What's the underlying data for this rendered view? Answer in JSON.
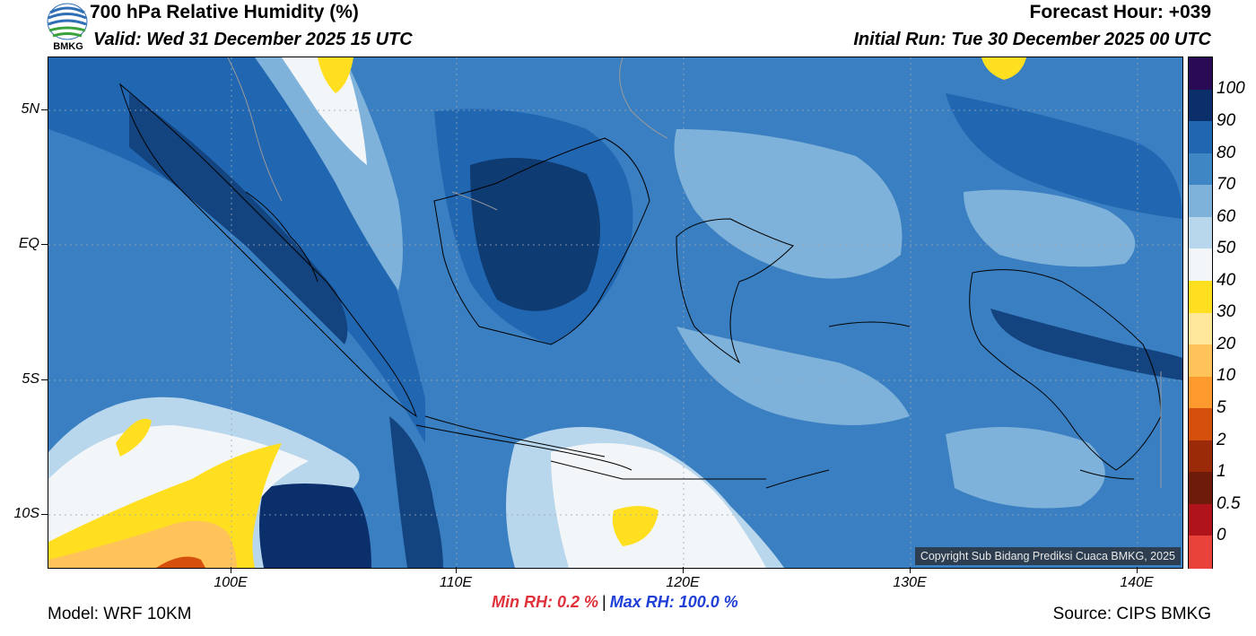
{
  "header": {
    "title": "700 hPa Relative Humidity (%)",
    "valid": "Valid: Wed 31 December 2025 15 UTC",
    "forecast_hour": "Forecast Hour: +039",
    "initial_run": "Initial Run: Tue 30 December 2025 00 UTC",
    "logo_text": "BMKG"
  },
  "axes": {
    "lat_labels": [
      "5N",
      "EQ",
      "5S",
      "10S"
    ],
    "lon_labels": [
      "100E",
      "110E",
      "120E",
      "130E",
      "140E"
    ]
  },
  "colorbar": {
    "labels": [
      "100",
      "90",
      "80",
      "70",
      "60",
      "50",
      "40",
      "30",
      "20",
      "10",
      "5",
      "2",
      "1",
      "0.5",
      "0"
    ],
    "colors": [
      "#2a0a55",
      "#0b2f6b",
      "#2166b0",
      "#3f86c4",
      "#7fb2da",
      "#b8d6ec",
      "#f3f6f9",
      "#ffdf1f",
      "#ffe89a",
      "#ffc35a",
      "#ff9a2e",
      "#d4500c",
      "#9b2a08",
      "#6e1b09",
      "#b0131a",
      "#e8423a"
    ]
  },
  "stats": {
    "min_rh": "Min RH:   0.2 %",
    "max_rh": "Max RH: 100.0 %"
  },
  "footer": {
    "model": "Model: WRF 10KM",
    "source": "Source: CIPS BMKG",
    "copyright": "Copyright Sub Bidang Prediksi Cuaca BMKG, 2025"
  }
}
